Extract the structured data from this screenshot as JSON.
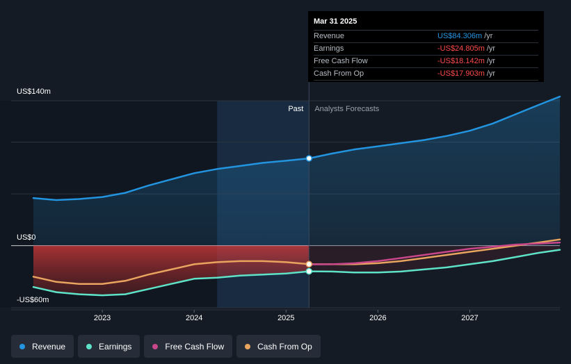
{
  "tooltip": {
    "date": "Mar 31 2025",
    "rows": [
      {
        "label": "Revenue",
        "value": "US$84.306m",
        "unit": "/yr",
        "color": "#2394df"
      },
      {
        "label": "Earnings",
        "value": "-US$24.805m",
        "unit": "/yr",
        "color": "#ff4a4a"
      },
      {
        "label": "Free Cash Flow",
        "value": "-US$18.142m",
        "unit": "/yr",
        "color": "#ff4a4a"
      },
      {
        "label": "Cash From Op",
        "value": "-US$17.903m",
        "unit": "/yr",
        "color": "#ff4a4a"
      }
    ]
  },
  "y_axis": {
    "top_label": "US$140m",
    "zero_label": "US$0",
    "bottom_label": "-US$60m"
  },
  "region_labels": {
    "past": "Past",
    "forecast": "Analysts Forecasts"
  },
  "legend": [
    {
      "label": "Revenue",
      "color": "#2394df"
    },
    {
      "label": "Earnings",
      "color": "#5fe3c8"
    },
    {
      "label": "Free Cash Flow",
      "color": "#c8468a"
    },
    {
      "label": "Cash From Op",
      "color": "#e9a45f"
    }
  ],
  "chart_data": {
    "type": "line",
    "title": "",
    "xlabel": "",
    "ylabel": "",
    "x_ticks": [
      "2023",
      "2024",
      "2025",
      "2026",
      "2027"
    ],
    "xlim": [
      2022.25,
      2027.98
    ],
    "ylim": [
      -60,
      140
    ],
    "divider_x": 2025.25,
    "highlight_start_x": 2024.25,
    "series": [
      {
        "name": "Revenue",
        "color": "#2394df",
        "points": [
          [
            2022.25,
            46
          ],
          [
            2022.5,
            44
          ],
          [
            2022.75,
            45
          ],
          [
            2023.0,
            47
          ],
          [
            2023.25,
            51
          ],
          [
            2023.5,
            58
          ],
          [
            2023.75,
            64
          ],
          [
            2024.0,
            70
          ],
          [
            2024.25,
            74
          ],
          [
            2024.5,
            77
          ],
          [
            2024.75,
            80
          ],
          [
            2025.0,
            82
          ],
          [
            2025.25,
            84.306
          ],
          [
            2025.5,
            89
          ],
          [
            2025.75,
            93
          ],
          [
            2026.0,
            96
          ],
          [
            2026.25,
            99
          ],
          [
            2026.5,
            102
          ],
          [
            2026.75,
            106
          ],
          [
            2027.0,
            111
          ],
          [
            2027.25,
            118
          ],
          [
            2027.5,
            127
          ],
          [
            2027.75,
            136
          ],
          [
            2027.98,
            144
          ]
        ]
      },
      {
        "name": "Earnings",
        "color": "#5fe3c8",
        "points": [
          [
            2022.25,
            -40
          ],
          [
            2022.5,
            -45
          ],
          [
            2022.75,
            -47
          ],
          [
            2023.0,
            -48
          ],
          [
            2023.25,
            -47
          ],
          [
            2023.5,
            -42
          ],
          [
            2023.75,
            -37
          ],
          [
            2024.0,
            -32
          ],
          [
            2024.25,
            -31
          ],
          [
            2024.5,
            -29
          ],
          [
            2024.75,
            -28
          ],
          [
            2025.0,
            -27
          ],
          [
            2025.25,
            -24.805
          ],
          [
            2025.5,
            -25
          ],
          [
            2025.75,
            -26
          ],
          [
            2026.0,
            -26
          ],
          [
            2026.25,
            -25
          ],
          [
            2026.5,
            -23
          ],
          [
            2026.75,
            -21
          ],
          [
            2027.0,
            -18
          ],
          [
            2027.25,
            -15
          ],
          [
            2027.5,
            -11
          ],
          [
            2027.75,
            -7
          ],
          [
            2027.98,
            -4
          ]
        ]
      },
      {
        "name": "Free Cash Flow",
        "color": "#c8468a",
        "points": [
          [
            2025.25,
            -18.142
          ],
          [
            2025.5,
            -18
          ],
          [
            2025.75,
            -17
          ],
          [
            2026.0,
            -15
          ],
          [
            2026.25,
            -12
          ],
          [
            2026.5,
            -9
          ],
          [
            2026.75,
            -6
          ],
          [
            2027.0,
            -3
          ],
          [
            2027.25,
            -1
          ],
          [
            2027.5,
            1
          ],
          [
            2027.75,
            2
          ],
          [
            2027.98,
            3
          ]
        ]
      },
      {
        "name": "Cash From Op",
        "color": "#e9a45f",
        "points": [
          [
            2022.25,
            -30
          ],
          [
            2022.5,
            -35
          ],
          [
            2022.75,
            -37
          ],
          [
            2023.0,
            -37
          ],
          [
            2023.25,
            -34
          ],
          [
            2023.5,
            -28
          ],
          [
            2023.75,
            -23
          ],
          [
            2024.0,
            -18
          ],
          [
            2024.25,
            -16
          ],
          [
            2024.5,
            -15
          ],
          [
            2024.75,
            -15
          ],
          [
            2025.0,
            -16
          ],
          [
            2025.25,
            -17.903
          ],
          [
            2025.5,
            -18
          ],
          [
            2025.75,
            -18
          ],
          [
            2026.0,
            -17
          ],
          [
            2026.25,
            -15
          ],
          [
            2026.5,
            -12
          ],
          [
            2026.75,
            -9
          ],
          [
            2027.0,
            -6
          ],
          [
            2027.25,
            -3
          ],
          [
            2027.5,
            0
          ],
          [
            2027.75,
            3
          ],
          [
            2027.98,
            6
          ]
        ]
      }
    ]
  }
}
